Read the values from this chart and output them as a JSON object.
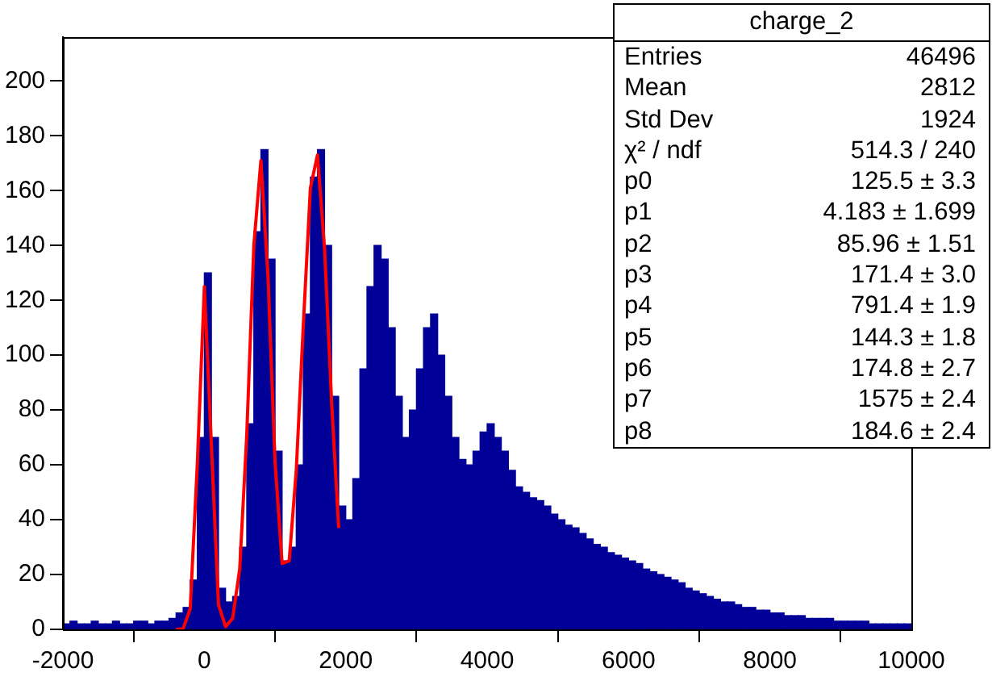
{
  "chart_data": {
    "type": "histogram",
    "bins": [
      -2000,
      -1900,
      -1800,
      -1700,
      -1600,
      -1500,
      -1400,
      -1300,
      -1200,
      -1100,
      -1000,
      -900,
      -800,
      -700,
      -600,
      -500,
      -400,
      -300,
      -200,
      -100,
      0,
      100,
      200,
      300,
      400,
      500,
      600,
      700,
      800,
      900,
      1000,
      1100,
      1200,
      1300,
      1400,
      1500,
      1600,
      1700,
      1800,
      1900,
      2000,
      2100,
      2200,
      2300,
      2400,
      2500,
      2600,
      2700,
      2800,
      2900,
      3000,
      3100,
      3200,
      3300,
      3400,
      3500,
      3600,
      3700,
      3800,
      3900,
      4000,
      4100,
      4200,
      4300,
      4400,
      4500,
      4600,
      4700,
      4800,
      4900,
      5000,
      5100,
      5200,
      5300,
      5400,
      5500,
      5600,
      5700,
      5800,
      5900,
      6000,
      6100,
      6200,
      6300,
      6400,
      6500,
      6600,
      6700,
      6800,
      6900,
      7000,
      7100,
      7200,
      7300,
      7400,
      7500,
      7600,
      7700,
      7800,
      7900,
      8000,
      8100,
      8200,
      8300,
      8400,
      8500,
      8600,
      8700,
      8800,
      8900,
      9000,
      9100,
      9200,
      9300,
      9400,
      9500,
      9600,
      9700,
      9800,
      9900,
      10000
    ],
    "series": [
      {
        "color": "#000099",
        "values": [
          2,
          3,
          2,
          2,
          3,
          2,
          2,
          3,
          2,
          2,
          3,
          3,
          2,
          3,
          3,
          4,
          6,
          8,
          18,
          70,
          130,
          70,
          15,
          10,
          12,
          30,
          75,
          145,
          175,
          135,
          65,
          25,
          30,
          60,
          115,
          165,
          175,
          140,
          85,
          45,
          40,
          55,
          95,
          125,
          140,
          135,
          110,
          85,
          70,
          80,
          95,
          110,
          115,
          100,
          85,
          70,
          62,
          60,
          65,
          72,
          75,
          70,
          65,
          58,
          52,
          50,
          48,
          47,
          45,
          42,
          40,
          38,
          37,
          35,
          33,
          31,
          30,
          28,
          27,
          26,
          25,
          24,
          22,
          21,
          20,
          19,
          18,
          17,
          15,
          14,
          13,
          12,
          11,
          10,
          10,
          9,
          8,
          8,
          7,
          7,
          6,
          6,
          5,
          5,
          5,
          4,
          4,
          4,
          4,
          3,
          3,
          3,
          3,
          3,
          2,
          2,
          2,
          2,
          2,
          2
        ]
      },
      {
        "type": "line",
        "color": "#ff0000",
        "x": [
          -400,
          -300,
          -200,
          -100,
          0,
          100,
          200,
          300,
          400,
          500,
          600,
          700,
          800,
          900,
          1000,
          1100,
          1200,
          1300,
          1400,
          1500,
          1600,
          1700,
          1800,
          1900
        ],
        "values": [
          0,
          0.2,
          7.5,
          60,
          125,
          67,
          9,
          1,
          4,
          22,
          71,
          140,
          171,
          129,
          61,
          24,
          25,
          58,
          111,
          161,
          173,
          139,
          83,
          37
        ]
      }
    ],
    "xlim": [
      -2000,
      10000
    ],
    "xticks": [
      -2000,
      0,
      2000,
      4000,
      6000,
      8000,
      10000
    ],
    "ylim": [
      0,
      216
    ],
    "yticks": [
      0,
      20,
      40,
      60,
      80,
      100,
      120,
      140,
      160,
      180,
      200
    ],
    "grid": false,
    "legend": false,
    "marker": "none",
    "legend_title": "charge_2",
    "annotations": [
      "Entries 46496",
      "Mean 2812",
      "Std Dev 1924",
      "χ² / ndf 514.3 / 240",
      "p0 125.5 ± 3.3",
      "p1 4.183 ± 1.699",
      "p2 85.96 ± 1.51",
      "p3 171.4 ± 3.0",
      "p4 791.4 ± 1.9",
      "p5 144.3 ± 1.8",
      "p6 174.8 ± 2.7",
      "p7 1575 ± 2.4",
      "p8 184.6 ± 2.4"
    ]
  }
}
